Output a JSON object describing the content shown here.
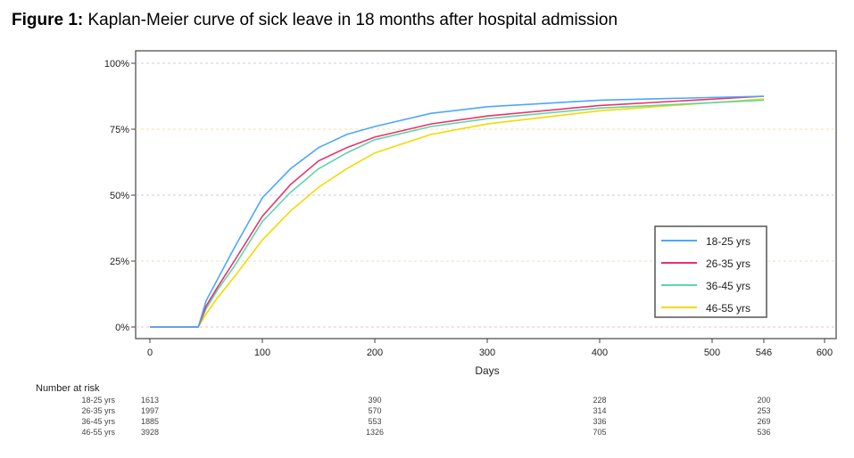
{
  "title": {
    "prefix": "Figure 1:",
    "text": " Kaplan-Meier curve of sick leave in 18 months after hospital admission"
  },
  "chart_data": {
    "type": "line",
    "xlabel": "Days",
    "ylabel": "",
    "xlim": [
      0,
      600
    ],
    "ylim": [
      0,
      1
    ],
    "xticks": [
      0,
      100,
      200,
      300,
      400,
      500,
      546,
      600
    ],
    "yticks": [
      {
        "v": 0,
        "label": "0%"
      },
      {
        "v": 0.25,
        "label": "25%"
      },
      {
        "v": 0.5,
        "label": "50%"
      },
      {
        "v": 0.75,
        "label": "75%"
      },
      {
        "v": 1,
        "label": "100%"
      }
    ],
    "legend_position": "bottom-right",
    "series": [
      {
        "name": "18-25 yrs",
        "color": "#4da6ff",
        "x": [
          0,
          43,
          50,
          60,
          75,
          100,
          125,
          150,
          175,
          200,
          250,
          300,
          400,
          546
        ],
        "y": [
          0,
          0,
          0.1,
          0.18,
          0.3,
          0.49,
          0.6,
          0.68,
          0.73,
          0.76,
          0.81,
          0.835,
          0.86,
          0.875
        ]
      },
      {
        "name": "26-35 yrs",
        "color": "#e8336b",
        "x": [
          0,
          43,
          50,
          60,
          75,
          100,
          125,
          150,
          175,
          200,
          250,
          300,
          400,
          546
        ],
        "y": [
          0,
          0,
          0.08,
          0.15,
          0.25,
          0.42,
          0.54,
          0.63,
          0.68,
          0.72,
          0.77,
          0.8,
          0.84,
          0.875
        ]
      },
      {
        "name": "36-45 yrs",
        "color": "#5ed6a8",
        "x": [
          0,
          43,
          50,
          60,
          75,
          100,
          125,
          150,
          175,
          200,
          250,
          300,
          400,
          546
        ],
        "y": [
          0,
          0,
          0.07,
          0.14,
          0.23,
          0.4,
          0.51,
          0.6,
          0.66,
          0.71,
          0.76,
          0.79,
          0.83,
          0.86
        ]
      },
      {
        "name": "46-55 yrs",
        "color": "#f5d800",
        "x": [
          0,
          43,
          50,
          60,
          75,
          100,
          125,
          150,
          175,
          200,
          250,
          300,
          400,
          546
        ],
        "y": [
          0,
          0,
          0.05,
          0.11,
          0.19,
          0.33,
          0.44,
          0.53,
          0.6,
          0.66,
          0.73,
          0.77,
          0.82,
          0.865
        ]
      }
    ],
    "risk_table": {
      "title": "Number at risk",
      "days": [
        0,
        200,
        400,
        546
      ],
      "rows": [
        {
          "label": "18-25 yrs",
          "values": [
            "1613",
            "390",
            "228",
            "200"
          ]
        },
        {
          "label": "26-35 yrs",
          "values": [
            "1997",
            "570",
            "314",
            "253"
          ]
        },
        {
          "label": "36-45 yrs",
          "values": [
            "1885",
            "553",
            "336",
            "269"
          ]
        },
        {
          "label": "46-55 yrs",
          "values": [
            "3928",
            "1326",
            "705",
            "536"
          ]
        }
      ]
    }
  }
}
